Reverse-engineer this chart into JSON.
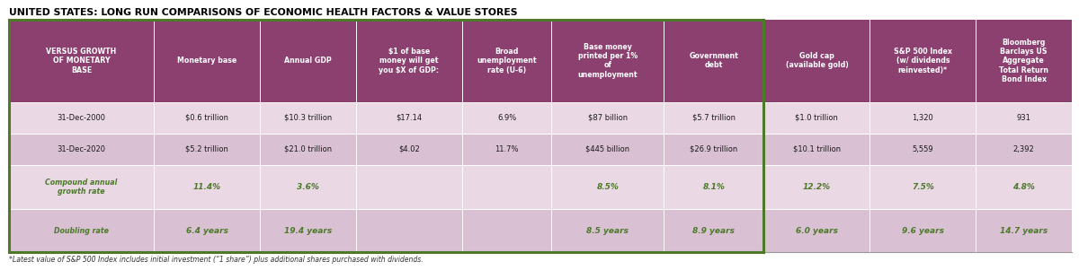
{
  "title": "UNITED STATES: LONG RUN COMPARISONS OF ECONOMIC HEALTH FACTORS & VALUE STORES",
  "footnote": "*Latest value of S&P 500 Index includes initial investment (“1 share”) plus additional shares purchased with dividends.",
  "header_bg": "#8B4070",
  "header_text": "#FFFFFF",
  "row1_bg": "#EAD8E5",
  "row2_bg": "#D9C0D3",
  "cagr_bg": "#EAD8E5",
  "double_bg": "#D9C0D3",
  "green_text": "#4B7A28",
  "green_box_border": "#4B7A28",
  "dark_text": "#1a1a1a",
  "col_headers": [
    "VERSUS GROWTH\nOF MONETARY\nBASE",
    "Monetary base",
    "Annual GDP",
    "$1 of base\nmoney will get\nyou $X of GDP:",
    "Broad\nunemployment\nrate (U-6)",
    "Base money\nprinted per 1%\nof\nunemployment",
    "Government\ndebt",
    "Gold cap\n(available gold)",
    "S&P 500 Index\n(w/ dividends\nreinvested)*",
    "Bloomberg\nBarclays US\nAggregate\nTotal Return\nBond Index"
  ],
  "row_2000": [
    "31-Dec-2000",
    "$0.6 trillion",
    "$10.3 trillion",
    "$17.14",
    "6.9%",
    "$87 billion",
    "$5.7 trillion",
    "$1.0 trillion",
    "1,320",
    "931"
  ],
  "row_2020": [
    "31-Dec-2020",
    "$5.2 trillion",
    "$21.0 trillion",
    "$4.02",
    "11.7%",
    "$445 billion",
    "$26.9 trillion",
    "$10.1 trillion",
    "5,559",
    "2,392"
  ],
  "row_cagr_label": "Compound annual\ngrowth rate",
  "row_cagr": [
    "",
    "11.4%",
    "3.6%",
    "",
    "",
    "8.5%",
    "8.1%",
    "12.2%",
    "7.5%",
    "4.8%"
  ],
  "row_double_label": "Doubling rate",
  "row_double": [
    "",
    "6.4 years",
    "19.4 years",
    "",
    "",
    "8.5 years",
    "8.9 years",
    "6.0 years",
    "9.6 years",
    "14.7 years"
  ],
  "col_widths_raw": [
    1.42,
    1.04,
    0.94,
    1.04,
    0.88,
    1.1,
    0.98,
    1.04,
    1.04,
    0.94
  ]
}
